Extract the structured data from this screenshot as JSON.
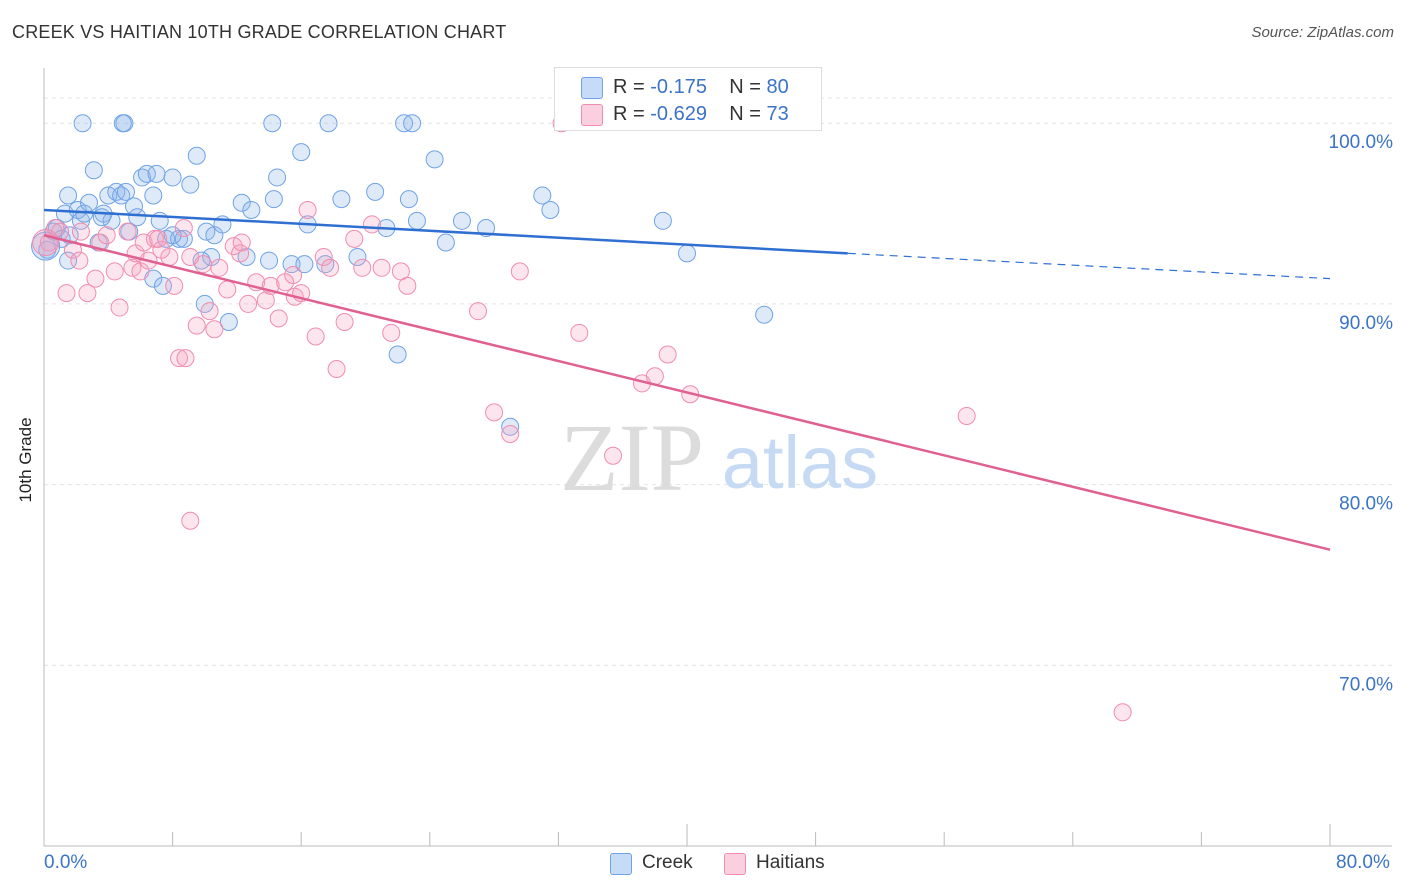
{
  "title": "CREEK VS HAITIAN 10TH GRADE CORRELATION CHART",
  "source": "Source: ZipAtlas.com",
  "watermark": {
    "zip": "ZIP",
    "atlas": "atlas"
  },
  "legend": {
    "creek": {
      "r_label": "R = ",
      "r_value": "-0.175",
      "n_label": "N = ",
      "n_value": "80"
    },
    "haitians": {
      "r_label": "R = ",
      "r_value": "-0.629",
      "n_label": "N = ",
      "n_value": "73"
    }
  },
  "x_axis": {
    "min_label": "0.0%",
    "max_label": "80.0%"
  },
  "colors": {
    "creek": "#6fa3e6",
    "creek_line": "#2f6fd1",
    "haitians": "#f08db0",
    "haitians_line": "#e0608f",
    "axis_text": "#3b74c7"
  },
  "chart_data": {
    "type": "scatter",
    "title": "CREEK VS HAITIAN 10TH GRADE CORRELATION CHART",
    "xlabel": "",
    "ylabel": "10th Grade",
    "xlim": [
      0,
      80
    ],
    "ylim": [
      60,
      103.5
    ],
    "y_ticks": [
      70,
      80,
      90,
      100
    ],
    "y_tick_labels": [
      "70.0%",
      "80.0%",
      "90.0%",
      "100.0%"
    ],
    "x_tick_labels": [
      "0.0%",
      "80.0%"
    ],
    "grid": true,
    "legend_position": "top-center",
    "series": [
      {
        "name": "Creek",
        "color": "#6fa3e6",
        "trend": {
          "x": [
            0,
            50,
            80
          ],
          "y": [
            95.2,
            92.8,
            91.4
          ],
          "solid_until": 50
        },
        "points": [
          [
            0.2,
            93
          ],
          [
            0.6,
            94
          ],
          [
            0.8,
            94.2
          ],
          [
            1.1,
            93.6
          ],
          [
            1.3,
            95
          ],
          [
            1.5,
            96
          ],
          [
            1.6,
            93.8
          ],
          [
            2.1,
            95.2
          ],
          [
            2.3,
            94.6
          ],
          [
            2.5,
            95
          ],
          [
            2.8,
            95.6
          ],
          [
            3.1,
            97.4
          ],
          [
            3.4,
            93.4
          ],
          [
            3.7,
            95
          ],
          [
            4,
            96
          ],
          [
            4.2,
            94.6
          ],
          [
            4.5,
            96.2
          ],
          [
            4.8,
            96
          ],
          [
            5.1,
            96.2
          ],
          [
            5.3,
            94
          ],
          [
            5.6,
            95.4
          ],
          [
            5.8,
            94.8
          ],
          [
            6.1,
            97
          ],
          [
            6.4,
            97.2
          ],
          [
            6.8,
            96
          ],
          [
            7,
            97.2
          ],
          [
            7.2,
            94.6
          ],
          [
            7.6,
            93.6
          ],
          [
            8,
            97
          ],
          [
            8.4,
            93.6
          ],
          [
            8.7,
            93.6
          ],
          [
            9.1,
            96.6
          ],
          [
            9.5,
            98.2
          ],
          [
            10.1,
            94
          ],
          [
            10.4,
            92.6
          ],
          [
            10.6,
            93.8
          ],
          [
            11.1,
            94.4
          ],
          [
            12.3,
            95.6
          ],
          [
            12.9,
            95.2
          ],
          [
            14.3,
            95.8
          ],
          [
            14.5,
            97
          ],
          [
            16,
            98.4
          ],
          [
            16.4,
            94.4
          ],
          [
            18.5,
            95.8
          ],
          [
            19.5,
            92.6
          ],
          [
            20.6,
            96.2
          ],
          [
            21.3,
            94.2
          ],
          [
            22.7,
            95.8
          ],
          [
            23.2,
            94.6
          ],
          [
            24.3,
            98
          ],
          [
            25,
            93.4
          ],
          [
            27.5,
            94.2
          ],
          [
            6.8,
            91.4
          ],
          [
            7.4,
            91
          ],
          [
            10,
            90
          ],
          [
            11.5,
            89
          ],
          [
            14,
            92.4
          ],
          [
            15.4,
            92.2
          ],
          [
            17.5,
            92.2
          ],
          [
            22,
            87.2
          ],
          [
            29,
            83.2
          ],
          [
            31,
            96
          ],
          [
            31.5,
            95.2
          ],
          [
            38.5,
            94.6
          ],
          [
            40,
            92.8
          ],
          [
            44.8,
            89.4
          ],
          [
            1.5,
            92.4
          ],
          [
            2.4,
            100
          ],
          [
            5,
            100
          ],
          [
            14.2,
            100
          ],
          [
            17.7,
            100
          ],
          [
            22.4,
            100
          ],
          [
            22.9,
            100
          ],
          [
            4.9,
            100
          ],
          [
            9.8,
            92.4
          ],
          [
            12.6,
            92.6
          ],
          [
            3.6,
            94.8
          ],
          [
            16.2,
            92.2
          ],
          [
            8,
            93.8
          ],
          [
            26,
            94.6
          ]
        ]
      },
      {
        "name": "Haitians",
        "color": "#f08db0",
        "trend": {
          "x": [
            0,
            80
          ],
          "y": [
            93.8,
            76.4
          ]
        },
        "points": [
          [
            0.3,
            93.4
          ],
          [
            0.7,
            94.2
          ],
          [
            1,
            94
          ],
          [
            1.4,
            90.6
          ],
          [
            1.8,
            93
          ],
          [
            2.2,
            92.4
          ],
          [
            2.7,
            90.6
          ],
          [
            3.2,
            91.4
          ],
          [
            3.5,
            93.4
          ],
          [
            3.9,
            93.8
          ],
          [
            4.4,
            91.8
          ],
          [
            4.7,
            89.8
          ],
          [
            5.2,
            94
          ],
          [
            5.5,
            92
          ],
          [
            5.7,
            92.8
          ],
          [
            6,
            91.8
          ],
          [
            6.2,
            93.4
          ],
          [
            6.5,
            92.4
          ],
          [
            6.9,
            93.6
          ],
          [
            7.3,
            93
          ],
          [
            7.8,
            92.6
          ],
          [
            8.1,
            91
          ],
          [
            8.4,
            87
          ],
          [
            8.8,
            87
          ],
          [
            9.1,
            92.6
          ],
          [
            9.5,
            88.8
          ],
          [
            9.9,
            92.2
          ],
          [
            10.3,
            89.6
          ],
          [
            10.6,
            88.6
          ],
          [
            10.9,
            92
          ],
          [
            11.4,
            90.8
          ],
          [
            11.8,
            93.2
          ],
          [
            12.2,
            92.8
          ],
          [
            12.7,
            90
          ],
          [
            13.2,
            91.2
          ],
          [
            13.8,
            90.2
          ],
          [
            14.1,
            91
          ],
          [
            14.6,
            89.2
          ],
          [
            15,
            91.2
          ],
          [
            15.6,
            90.4
          ],
          [
            16,
            90.6
          ],
          [
            16.4,
            95.2
          ],
          [
            16.9,
            88.2
          ],
          [
            17.4,
            92.6
          ],
          [
            17.8,
            92
          ],
          [
            18.2,
            86.4
          ],
          [
            18.7,
            89
          ],
          [
            19.3,
            93.6
          ],
          [
            19.8,
            92
          ],
          [
            20.4,
            94.4
          ],
          [
            21,
            92
          ],
          [
            21.6,
            88.4
          ],
          [
            22.2,
            91.8
          ],
          [
            22.6,
            91
          ],
          [
            27,
            89.6
          ],
          [
            28,
            84
          ],
          [
            29,
            82.8
          ],
          [
            29.6,
            91.8
          ],
          [
            33.3,
            88.4
          ],
          [
            35.4,
            81.6
          ],
          [
            37.2,
            85.6
          ],
          [
            38,
            86
          ],
          [
            38.8,
            87.2
          ],
          [
            40.2,
            85
          ],
          [
            57.4,
            83.8
          ],
          [
            67.1,
            67.4
          ],
          [
            8.7,
            94.2
          ],
          [
            7.1,
            93.6
          ],
          [
            12.3,
            93.4
          ],
          [
            15.5,
            91.6
          ],
          [
            9.1,
            78
          ],
          [
            2.3,
            94
          ],
          [
            32.2,
            100
          ]
        ]
      }
    ]
  }
}
